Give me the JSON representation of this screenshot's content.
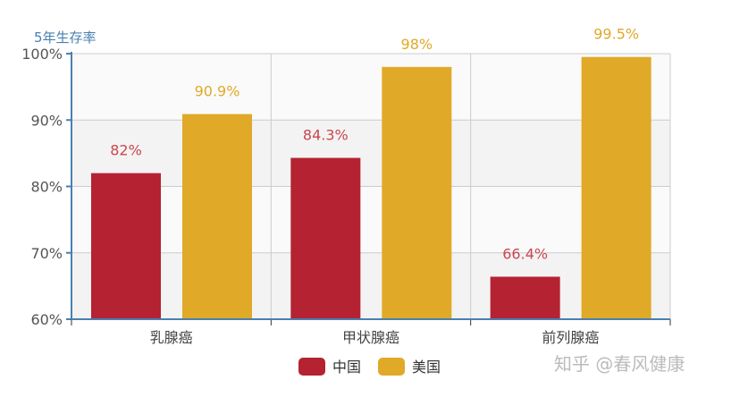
{
  "chart_data": {
    "type": "bar",
    "ylabel": "5年生存率",
    "categories": [
      "乳腺癌",
      "甲状腺癌",
      "前列腺癌"
    ],
    "series": [
      {
        "name": "中国",
        "values": [
          82,
          84.3,
          66.4
        ],
        "labels": [
          "82%",
          "84.3%",
          "66.4%"
        ],
        "color": "#b52232"
      },
      {
        "name": "美国",
        "values": [
          90.9,
          98,
          99.5
        ],
        "labels": [
          "90.9%",
          "98%",
          "99.5%"
        ],
        "color": "#e0a928"
      }
    ],
    "ylim": [
      60,
      100
    ],
    "yticks": [
      60,
      70,
      80,
      90,
      100
    ],
    "ytick_labels": [
      "60%",
      "70%",
      "80%",
      "90%",
      "100%"
    ],
    "grid": true,
    "legend": "bottom",
    "axis_color": "#4a7fb0",
    "label_colors": {
      "中国": "#c9474f",
      "美国": "#e0a928"
    }
  },
  "watermark": "知乎 @春风健康"
}
